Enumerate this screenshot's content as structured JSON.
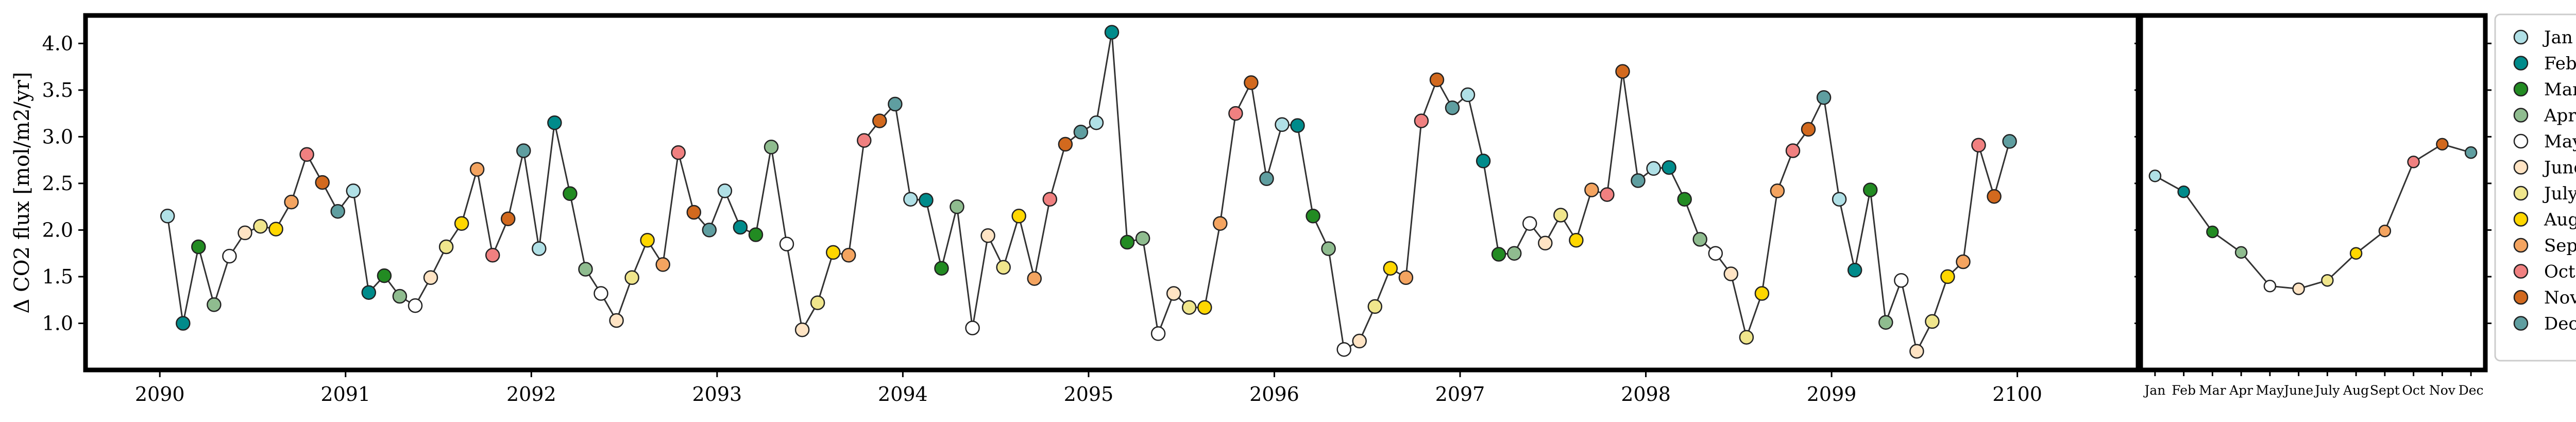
{
  "chart_data": [
    {
      "type": "line",
      "ylabel": "Δ CO2 flux [mol/m2/yr]",
      "xlabel": "",
      "title": "",
      "xlim": [
        2089.6,
        2100.65
      ],
      "ylim": [
        0.5,
        4.3
      ],
      "x_ticks": [
        2090,
        2091,
        2092,
        2093,
        2094,
        2095,
        2096,
        2097,
        2098,
        2099,
        2100
      ],
      "x_tick_labels": [
        "2090",
        "2091",
        "2092",
        "2093",
        "2094",
        "2095",
        "2096",
        "2097",
        "2098",
        "2099",
        "2100"
      ],
      "y_ticks": [
        1.0,
        1.5,
        2.0,
        2.5,
        3.0,
        3.5,
        4.0
      ],
      "y_tick_labels": [
        "1.0",
        "1.5",
        "2.0",
        "2.5",
        "3.0",
        "3.5",
        "4.0"
      ],
      "grid": false,
      "x_start_year": 2090,
      "values": [
        2.15,
        1.0,
        1.82,
        1.2,
        1.72,
        1.97,
        2.04,
        2.01,
        2.3,
        2.81,
        2.51,
        2.2,
        2.42,
        1.33,
        1.51,
        1.29,
        1.19,
        1.49,
        1.82,
        2.07,
        2.65,
        1.73,
        2.12,
        2.85,
        1.8,
        3.15,
        2.39,
        1.58,
        1.32,
        1.03,
        1.49,
        1.89,
        1.63,
        2.83,
        2.19,
        2.0,
        2.42,
        2.03,
        1.95,
        2.89,
        1.85,
        0.93,
        1.22,
        1.76,
        1.73,
        2.96,
        3.17,
        3.35,
        2.33,
        2.32,
        1.59,
        2.25,
        0.95,
        1.94,
        1.6,
        2.15,
        1.48,
        2.33,
        2.92,
        3.05,
        3.15,
        4.12,
        1.87,
        1.91,
        0.89,
        1.32,
        1.17,
        1.17,
        2.07,
        3.25,
        3.58,
        2.55,
        3.13,
        3.12,
        2.15,
        1.8,
        0.72,
        0.81,
        1.18,
        1.59,
        1.49,
        3.17,
        3.61,
        3.31,
        3.45,
        2.74,
        1.74,
        1.75,
        2.07,
        1.86,
        2.16,
        1.89,
        2.43,
        2.38,
        3.7,
        2.53,
        2.66,
        2.67,
        2.33,
        1.9,
        1.75,
        1.53,
        0.85,
        1.32,
        2.42,
        2.85,
        3.08,
        3.42,
        2.33,
        1.57,
        2.43,
        1.01,
        1.46,
        0.7,
        1.02,
        1.5,
        1.66,
        2.91,
        2.36,
        2.95
      ]
    },
    {
      "type": "line",
      "title": "",
      "categories": [
        "Jan",
        "Feb",
        "Mar",
        "Apr",
        "May",
        "June",
        "July",
        "Aug",
        "Sept",
        "Oct",
        "Nov",
        "Dec"
      ],
      "values": [
        2.58,
        2.41,
        1.98,
        1.76,
        1.4,
        1.37,
        1.46,
        1.75,
        1.99,
        2.73,
        2.92,
        2.83
      ],
      "ylim": [
        0.5,
        4.3
      ],
      "grid": false
    }
  ],
  "legend": {
    "placement": "right",
    "entries": [
      {
        "label": "Jan",
        "color": "#b0e0e6"
      },
      {
        "label": "Feb",
        "color": "#008b8b"
      },
      {
        "label": "Mar",
        "color": "#228b22"
      },
      {
        "label": "Apr",
        "color": "#8fbc8f"
      },
      {
        "label": "May",
        "color": "#ffffff"
      },
      {
        "label": "June",
        "color": "#ffe4c4"
      },
      {
        "label": "July",
        "color": "#f0e68c"
      },
      {
        "label": "Aug",
        "color": "#ffd700"
      },
      {
        "label": "Sept",
        "color": "#f4a460"
      },
      {
        "label": "Oct",
        "color": "#f08080"
      },
      {
        "label": "Nov",
        "color": "#d2691e"
      },
      {
        "label": "Dec",
        "color": "#5f9ea0"
      }
    ]
  },
  "style": {
    "line_color": "#333333",
    "marker_edge_color": "#222222"
  }
}
